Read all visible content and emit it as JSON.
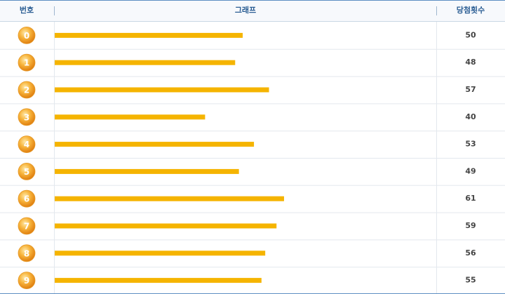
{
  "chart_data": {
    "type": "bar",
    "orientation": "horizontal",
    "columns": [
      "번호",
      "그래프",
      "당첨횟수"
    ],
    "categories": [
      "0",
      "1",
      "2",
      "3",
      "4",
      "5",
      "6",
      "7",
      "8",
      "9"
    ],
    "values": [
      50,
      48,
      57,
      40,
      53,
      49,
      61,
      59,
      56,
      55
    ],
    "color": "#f5b400"
  }
}
